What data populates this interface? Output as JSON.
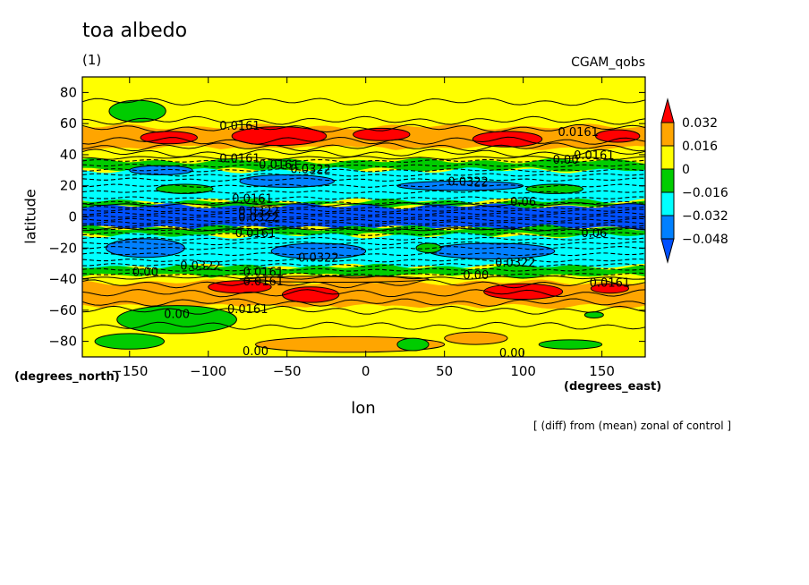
{
  "header": {
    "title": "toa albedo",
    "subtitle": "(1)",
    "run_name": "CGAM_qobs"
  },
  "axes": {
    "ylabel": "latitude",
    "xlabel": "lon",
    "y_units": "(degrees_north)",
    "x_units": "(degrees_east)"
  },
  "footnote": "[ (diff) from (mean) zonal of control ]",
  "chart_data": {
    "type": "heatmap",
    "title": "toa albedo",
    "subtitle": "(1)",
    "xlabel": "lon",
    "ylabel": "latitude",
    "x_units": "(degrees_east)",
    "y_units": "(degrees_north)",
    "xlim": [
      -180,
      177.5
    ],
    "ylim": [
      -90,
      90
    ],
    "x_ticks": [
      -150,
      -100,
      -50,
      0,
      50,
      100,
      150
    ],
    "y_ticks": [
      80,
      60,
      40,
      20,
      0,
      -20,
      -40,
      -60,
      -80
    ],
    "colorbar": {
      "levels": [
        0.032,
        0.016,
        0,
        -0.016,
        -0.032,
        -0.048
      ],
      "labels": [
        "0.032",
        "0.016",
        "0",
        "−0.016",
        "−0.032",
        "−0.048"
      ],
      "colors": [
        "#ff0000",
        "#ffa500",
        "#ffff00",
        "#00cc00",
        "#00ffff",
        "#0080ff",
        "#0050ff"
      ]
    },
    "zonal_bands": [
      {
        "lat_from": 90,
        "lat_to": 72,
        "color": "#ffff00"
      },
      {
        "lat_from": 72,
        "lat_to": 58,
        "color": "#ffff00"
      },
      {
        "lat_from": 58,
        "lat_to": 44,
        "color": "#ffa500"
      },
      {
        "lat_from": 44,
        "lat_to": 36,
        "color": "#ffff00"
      },
      {
        "lat_from": 36,
        "lat_to": 30,
        "color": "#00cc00"
      },
      {
        "lat_from": 30,
        "lat_to": 10,
        "color": "#00ffff"
      },
      {
        "lat_from": 10,
        "lat_to": 7,
        "color": "#00cc00"
      },
      {
        "lat_from": 7,
        "lat_to": -7,
        "color": "#0050ff"
      },
      {
        "lat_from": -7,
        "lat_to": -12,
        "color": "#00cc00"
      },
      {
        "lat_from": -12,
        "lat_to": -32,
        "color": "#00ffff"
      },
      {
        "lat_from": -32,
        "lat_to": -38,
        "color": "#00cc00"
      },
      {
        "lat_from": -38,
        "lat_to": -42,
        "color": "#ffff00"
      },
      {
        "lat_from": -42,
        "lat_to": -58,
        "color": "#ffa500"
      },
      {
        "lat_from": -58,
        "lat_to": -90,
        "color": "#ffff00"
      }
    ],
    "patches": [
      {
        "lon": -145,
        "lat": 68,
        "rlon": 18,
        "rlat": 7,
        "color": "#00cc00"
      },
      {
        "lon": -125,
        "lat": 51,
        "rlon": 18,
        "rlat": 4,
        "color": "#ff0000"
      },
      {
        "lon": -55,
        "lat": 52,
        "rlon": 30,
        "rlat": 6,
        "color": "#ff0000"
      },
      {
        "lon": 10,
        "lat": 53,
        "rlon": 18,
        "rlat": 4,
        "color": "#ff0000"
      },
      {
        "lon": 90,
        "lat": 50,
        "rlon": 22,
        "rlat": 5,
        "color": "#ff0000"
      },
      {
        "lon": 160,
        "lat": 52,
        "rlon": 14,
        "rlat": 4,
        "color": "#ff0000"
      },
      {
        "lon": -120,
        "lat": -66,
        "rlon": 38,
        "rlat": 9,
        "color": "#00cc00"
      },
      {
        "lon": -35,
        "lat": -50,
        "rlon": 18,
        "rlat": 5,
        "color": "#ff0000"
      },
      {
        "lon": -80,
        "lat": -45,
        "rlon": 20,
        "rlat": 4,
        "color": "#ff0000"
      },
      {
        "lon": 100,
        "lat": -48,
        "rlon": 25,
        "rlat": 5,
        "color": "#ff0000"
      },
      {
        "lon": 155,
        "lat": -46,
        "rlon": 12,
        "rlat": 3,
        "color": "#ff0000"
      },
      {
        "lon": 70,
        "lat": -78,
        "rlon": 20,
        "rlat": 4,
        "color": "#ffa500"
      },
      {
        "lon": -150,
        "lat": -80,
        "rlon": 22,
        "rlat": 5,
        "color": "#00cc00"
      },
      {
        "lon": -10,
        "lat": -82,
        "rlon": 60,
        "rlat": 5,
        "color": "#ffa500"
      },
      {
        "lon": 30,
        "lat": -82,
        "rlon": 10,
        "rlat": 4,
        "color": "#00cc00"
      },
      {
        "lon": 130,
        "lat": -82,
        "rlon": 20,
        "rlat": 3,
        "color": "#00cc00"
      },
      {
        "lon": 145,
        "lat": -63,
        "rlon": 6,
        "rlat": 2,
        "color": "#00cc00"
      },
      {
        "lon": -115,
        "lat": 18,
        "rlon": 18,
        "rlat": 3,
        "color": "#00cc00"
      },
      {
        "lon": 120,
        "lat": 18,
        "rlon": 18,
        "rlat": 3,
        "color": "#00cc00"
      },
      {
        "lon": -130,
        "lat": 30,
        "rlon": 20,
        "rlat": 3,
        "color": "#0080ff"
      },
      {
        "lon": -50,
        "lat": 23,
        "rlon": 30,
        "rlat": 4,
        "color": "#0080ff"
      },
      {
        "lon": 60,
        "lat": 20,
        "rlon": 40,
        "rlat": 3,
        "color": "#0080ff"
      },
      {
        "lon": -140,
        "lat": -20,
        "rlon": 25,
        "rlat": 6,
        "color": "#0080ff"
      },
      {
        "lon": -30,
        "lat": -22,
        "rlon": 30,
        "rlat": 5,
        "color": "#0080ff"
      },
      {
        "lon": 80,
        "lat": -22,
        "rlon": 40,
        "rlat": 5,
        "color": "#0080ff"
      },
      {
        "lon": -20,
        "lat": -40,
        "rlon": 60,
        "rlat": 2,
        "color": "#ffa500"
      },
      {
        "lon": 40,
        "lat": -20,
        "rlon": 8,
        "rlat": 3,
        "color": "#00cc00"
      }
    ],
    "contour_labels": [
      {
        "text": "0.0161",
        "lon": -80,
        "lat": 59
      },
      {
        "text": "0.0161",
        "lon": -80,
        "lat": 38
      },
      {
        "text": "0.0161",
        "lon": -55,
        "lat": 34
      },
      {
        "text": "0.0322",
        "lon": -35,
        "lat": 31
      },
      {
        "text": "0.0322",
        "lon": 65,
        "lat": 23
      },
      {
        "text": "0.0161",
        "lon": 135,
        "lat": 55
      },
      {
        "text": "0.0161",
        "lon": 145,
        "lat": 40
      },
      {
        "text": "0.00",
        "lon": 127,
        "lat": 37
      },
      {
        "text": "0.0161",
        "lon": -72,
        "lat": 12
      },
      {
        "text": "0.06",
        "lon": 100,
        "lat": 10
      },
      {
        "text": "0.0322",
        "lon": -68,
        "lat": 4
      },
      {
        "text": "0.0322",
        "lon": -68,
        "lat": 0
      },
      {
        "text": "0.0161",
        "lon": -70,
        "lat": -10
      },
      {
        "text": "0.06",
        "lon": 145,
        "lat": -10
      },
      {
        "text": "0.0322",
        "lon": -30,
        "lat": -26
      },
      {
        "text": "0.0322",
        "lon": 95,
        "lat": -29
      },
      {
        "text": "0.0322",
        "lon": -105,
        "lat": -31
      },
      {
        "text": "0.0161",
        "lon": -65,
        "lat": -35
      },
      {
        "text": "0.0161",
        "lon": -65,
        "lat": -41
      },
      {
        "text": "0.00",
        "lon": -140,
        "lat": -35
      },
      {
        "text": "0.00",
        "lon": 70,
        "lat": -37
      },
      {
        "text": "0.0161",
        "lon": 155,
        "lat": -42
      },
      {
        "text": "0.0161",
        "lon": -75,
        "lat": -59
      },
      {
        "text": "0.00",
        "lon": -120,
        "lat": -62
      },
      {
        "text": "0.00",
        "lon": -70,
        "lat": -86
      },
      {
        "text": "0.00",
        "lon": 93,
        "lat": -87
      }
    ],
    "dashed_lats": [
      36,
      33,
      30,
      27,
      24,
      20,
      16,
      12,
      9,
      6,
      4,
      2,
      0,
      -2,
      -4,
      -6,
      -8,
      -11,
      -14,
      -17,
      -20,
      -24,
      -28,
      -31,
      -34,
      -37
    ],
    "solid_lats": [
      74,
      62,
      57,
      49,
      45,
      41,
      38,
      8,
      -8,
      -39,
      -43,
      -49,
      -55,
      -60,
      -70
    ]
  }
}
